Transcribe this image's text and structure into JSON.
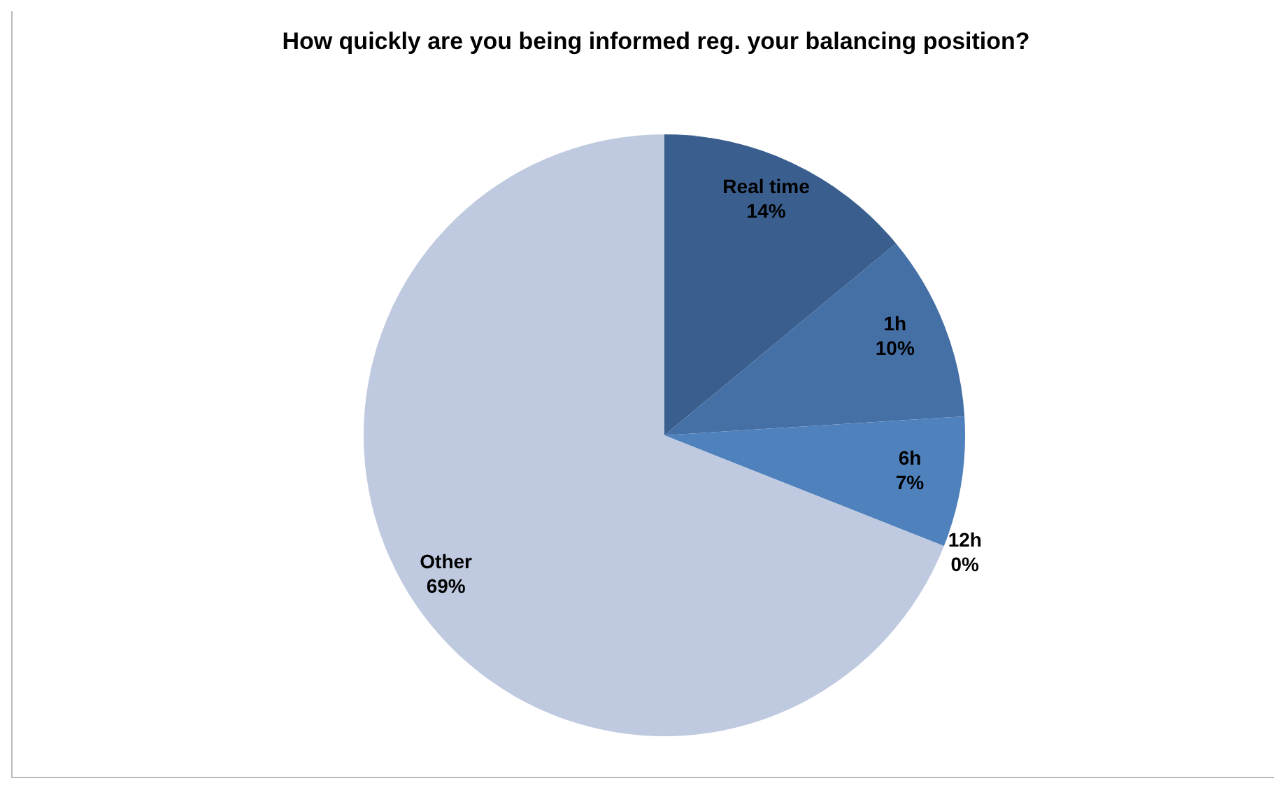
{
  "chart_data": {
    "type": "pie",
    "title": "How quickly are you being informed reg. your balancing position?",
    "categories": [
      "Real time",
      "1h",
      "6h",
      "12h",
      "Other"
    ],
    "values": [
      14,
      10,
      7,
      0,
      69
    ],
    "colors": [
      "#3a5f8f",
      "#4470a6",
      "#4f81bd",
      "#7f9fcf",
      "#bfcae0"
    ],
    "value_labels": [
      "14%",
      "10%",
      "7%",
      "0%",
      "69%"
    ]
  }
}
